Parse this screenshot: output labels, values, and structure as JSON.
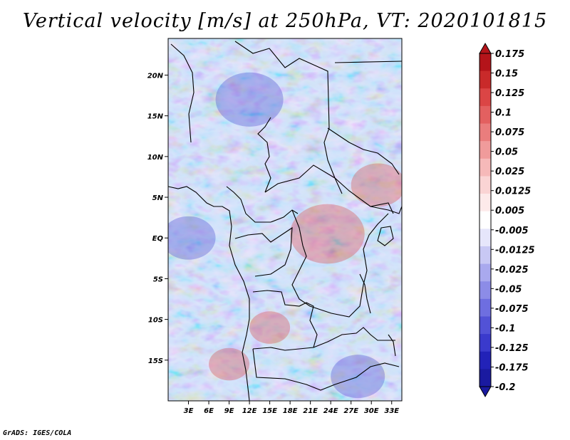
{
  "title": "Vertical velocity [m/s] at 250hPa, VT: 2020101815",
  "credit": "GrADS: IGES/COLA",
  "map": {
    "lon_range": [
      0,
      34.5
    ],
    "lat_range": [
      -20,
      24.5
    ],
    "lon_ticks": [
      "3E",
      "6E",
      "9E",
      "12E",
      "15E",
      "18E",
      "21E",
      "24E",
      "27E",
      "30E",
      "33E"
    ],
    "lon_tick_values": [
      3,
      6,
      9,
      12,
      15,
      18,
      21,
      24,
      27,
      30,
      33
    ],
    "lat_ticks": [
      "20N",
      "15N",
      "10N",
      "5N",
      "EQ",
      "5S",
      "10S",
      "15S"
    ],
    "lat_tick_values": [
      20,
      15,
      10,
      5,
      0,
      -5,
      -10,
      -15
    ],
    "field": "vertical velocity",
    "units": "m/s",
    "level": "250hPa",
    "valid_time": "2020101815",
    "features": [
      {
        "name": "positive-region-central",
        "lon_center": 23.5,
        "lat_center": 0.5,
        "radius_deg": 5.5,
        "sign": "positive"
      },
      {
        "name": "positive-region-east",
        "lon_center": 31,
        "lat_center": 6.5,
        "radius_deg": 4,
        "sign": "positive"
      },
      {
        "name": "positive-region-angola",
        "lon_center": 15,
        "lat_center": -11,
        "radius_deg": 3,
        "sign": "positive"
      },
      {
        "name": "positive-region-southwest",
        "lon_center": 9,
        "lat_center": -15.5,
        "radius_deg": 3,
        "sign": "positive"
      },
      {
        "name": "negative-region-north",
        "lon_center": 12,
        "lat_center": 17,
        "radius_deg": 5,
        "sign": "negative"
      },
      {
        "name": "negative-region-southeast",
        "lon_center": 28,
        "lat_center": -17,
        "radius_deg": 4,
        "sign": "negative"
      },
      {
        "name": "negative-region-west-ocean",
        "lon_center": 3,
        "lat_center": 0,
        "radius_deg": 4,
        "sign": "negative"
      }
    ]
  },
  "colorbar": {
    "labels": [
      "0.175",
      "0.15",
      "0.125",
      "0.1",
      "0.075",
      "0.05",
      "0.025",
      "0.0125",
      "0.005",
      "-0.005",
      "-0.0125",
      "-0.025",
      "-0.05",
      "-0.075",
      "-0.1",
      "-0.125",
      "-0.175",
      "-0.2"
    ],
    "colors": [
      "#b4141a",
      "#c92a2a",
      "#db4545",
      "#e36060",
      "#ea7d7d",
      "#f09b9b",
      "#f6b9b9",
      "#fad4d4",
      "#fdeaea",
      "#ffffff",
      "#e6e6fb",
      "#c8c8f4",
      "#a9a9ee",
      "#8c8ce7",
      "#6e6ee0",
      "#5252d6",
      "#3a3acc",
      "#2222b8",
      "#1a1aa0"
    ]
  }
}
